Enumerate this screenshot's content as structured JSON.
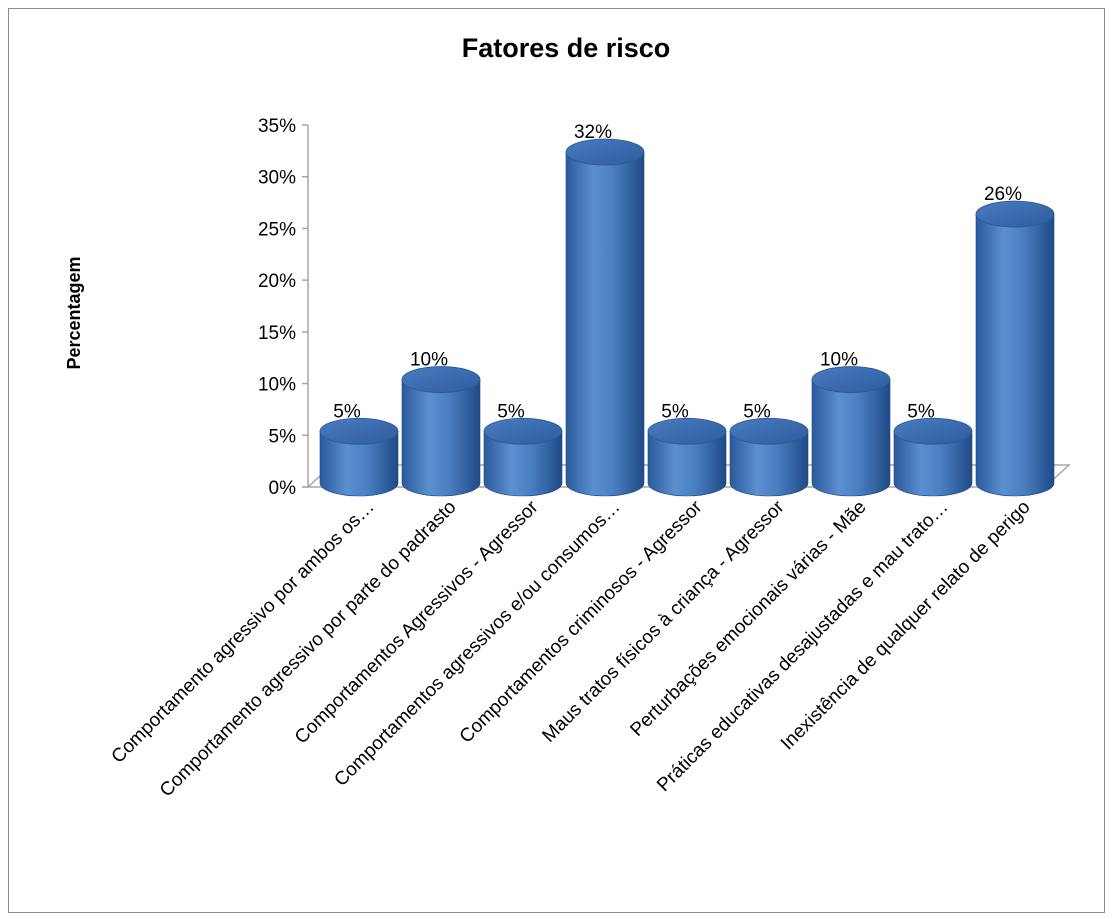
{
  "chart_data": {
    "type": "bar",
    "title": "Fatores de risco",
    "xlabel": "",
    "ylabel": "Percentagem",
    "ylim": [
      0,
      35
    ],
    "ytick_labels": [
      "0%",
      "5%",
      "10%",
      "15%",
      "20%",
      "25%",
      "30%",
      "35%"
    ],
    "ytick_values": [
      0,
      5,
      10,
      15,
      20,
      25,
      30,
      35
    ],
    "categories": [
      "Comportamento agressivo por ambos os…",
      "Comportamento agressivo por parte do padrasto",
      "Comportamentos Agressivos - Agressor",
      "Comportamentos agressivos e/ou consumos…",
      "Comportamentos criminosos - Agressor",
      "Maus tratos físicos à criança - Agressor",
      "Perturbações emocionais várias - Mãe",
      "Práticas educativas desajustadas e mau trato…",
      "Inexistência de qualquer relato de perigo"
    ],
    "values": [
      5,
      10,
      5,
      32,
      5,
      5,
      10,
      5,
      26
    ],
    "data_labels": [
      "5%",
      "10%",
      "5%",
      "32%",
      "5%",
      "5%",
      "10%",
      "5%",
      "26%"
    ],
    "grid": false,
    "legend": "none",
    "style": "3d-cylinder",
    "colors": {
      "bar": "#4f81bd",
      "bar_dark": "#1f4e8c",
      "bar_top": "#3a6aae",
      "axis": "#a6a6a6"
    }
  }
}
